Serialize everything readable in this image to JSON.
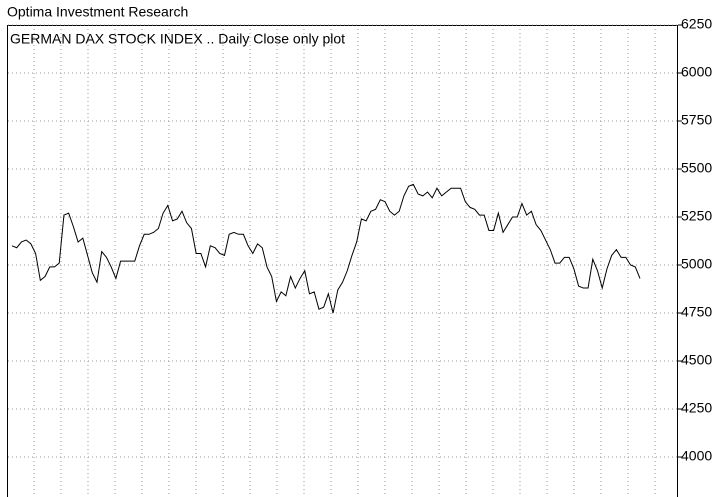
{
  "header": "Optima Investment Research",
  "chart_data": {
    "type": "line",
    "title": "GERMAN DAX STOCK INDEX .. Daily Close only plot",
    "series": [
      {
        "name": "Daily Close",
        "color": "#000000",
        "values": [
          5100,
          5090,
          5120,
          5130,
          5110,
          5060,
          4920,
          4940,
          4990,
          4990,
          5010,
          5260,
          5270,
          5200,
          5120,
          5140,
          5050,
          4960,
          4910,
          5070,
          5040,
          4990,
          4930,
          5020,
          5020,
          5020,
          5020,
          5100,
          5160,
          5160,
          5170,
          5190,
          5270,
          5310,
          5230,
          5240,
          5280,
          5220,
          5190,
          5060,
          5060,
          4990,
          5100,
          5090,
          5060,
          5050,
          5160,
          5170,
          5160,
          5160,
          5100,
          5060,
          5110,
          5090,
          4990,
          4940,
          4810,
          4860,
          4840,
          4940,
          4880,
          4930,
          4970,
          4850,
          4860,
          4770,
          4780,
          4850,
          4750,
          4870,
          4910,
          4970,
          5050,
          5120,
          5240,
          5230,
          5280,
          5290,
          5340,
          5330,
          5280,
          5260,
          5280,
          5360,
          5410,
          5420,
          5370,
          5360,
          5380,
          5350,
          5400,
          5360,
          5380,
          5400,
          5400,
          5400,
          5330,
          5300,
          5290,
          5260,
          5260,
          5180,
          5180,
          5270,
          5170,
          5210,
          5250,
          5250,
          5320,
          5260,
          5280,
          5210,
          5180,
          5130,
          5080,
          5010,
          5010,
          5040,
          5040,
          4980,
          4890,
          4880,
          4880,
          5030,
          4970,
          4880,
          4980,
          5050,
          5080,
          5040,
          5040,
          5000,
          4990,
          4930
        ]
      }
    ],
    "ylim": [
      3800,
      6250
    ],
    "yticks": [
      4000,
      4250,
      4500,
      4750,
      5000,
      5250,
      5500,
      5750,
      6000,
      6250
    ],
    "grid": true
  }
}
